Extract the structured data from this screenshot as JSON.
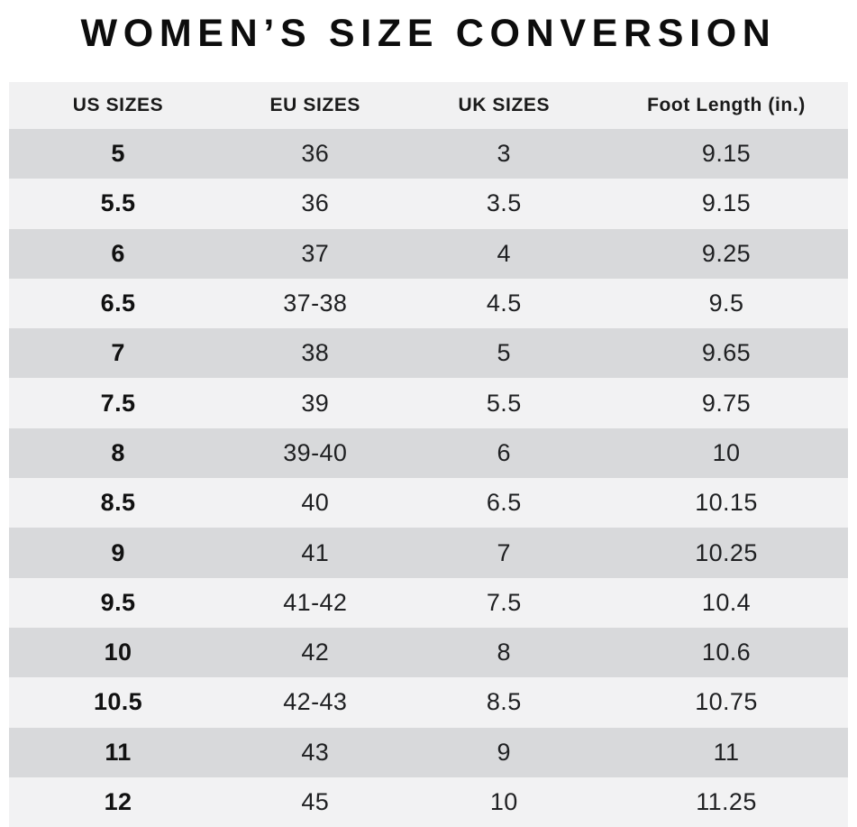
{
  "title": "WOMEN’S SIZE CONVERSION",
  "chart_data": {
    "type": "table",
    "title": "WOMEN’S SIZE CONVERSION",
    "columns": [
      "US SIZES",
      "EU SIZES",
      "UK SIZES",
      "Foot Length (in.)"
    ],
    "rows": [
      [
        "5",
        "36",
        "3",
        "9.15"
      ],
      [
        "5.5",
        "36",
        "3.5",
        "9.15"
      ],
      [
        "6",
        "37",
        "4",
        "9.25"
      ],
      [
        "6.5",
        "37-38",
        "4.5",
        "9.5"
      ],
      [
        "7",
        "38",
        "5",
        "9.65"
      ],
      [
        "7.5",
        "39",
        "5.5",
        "9.75"
      ],
      [
        "8",
        "39-40",
        "6",
        "10"
      ],
      [
        "8.5",
        "40",
        "6.5",
        "10.15"
      ],
      [
        "9",
        "41",
        "7",
        "10.25"
      ],
      [
        "9.5",
        "41-42",
        "7.5",
        "10.4"
      ],
      [
        "10",
        "42",
        "8",
        "10.6"
      ],
      [
        "10.5",
        "42-43",
        "8.5",
        "10.75"
      ],
      [
        "11",
        "43",
        "9",
        "11"
      ],
      [
        "12",
        "45",
        "10",
        "11.25"
      ]
    ],
    "layout": {
      "stripe_pattern": "odd-rows-dark",
      "column_alignment": "center",
      "first_column_bold": true
    }
  },
  "colors": {
    "row_stripe_dark": "#d8d9db",
    "row_stripe_light": "#f2f2f3",
    "header_background": "#f1f1f2",
    "page_background": "#ffffff",
    "text": "#1a1a1a"
  }
}
